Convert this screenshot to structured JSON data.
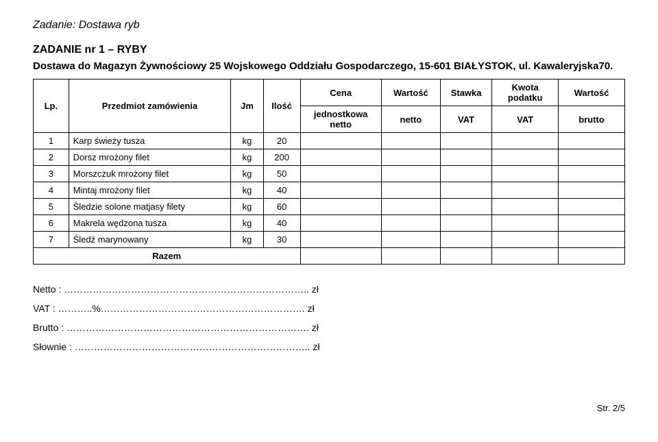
{
  "task_title": "Zadanie: Dostawa ryb",
  "section_heading": "ZADANIE nr 1 – RYBY",
  "delivery_line": "Dostawa do Magazyn Żywnościowy 25 Wojskowego Oddziału Gospodarczego, 15-601 BIAŁYSTOK, ul. Kawaleryjska70.",
  "headers": {
    "lp": "Lp.",
    "name": "Przedmiot zamówienia",
    "jm": "Jm",
    "ilosc": "Ilość",
    "cena_top": "Cena",
    "cena_bot1": "jednostkowa",
    "cena_bot2": "netto",
    "wn_top": "Wartość",
    "wn_bot": "netto",
    "stawka_top": "Stawka",
    "stawka_bot": "VAT",
    "kwota_top1": "Kwota",
    "kwota_top2": "podatku",
    "kwota_bot": "VAT",
    "wb_top": "Wartość",
    "wb_bot": "brutto"
  },
  "rows": [
    {
      "lp": "1",
      "name": "Karp świeży tusza",
      "jm": "kg",
      "ilosc": "20"
    },
    {
      "lp": "2",
      "name": "Dorsz mrożony filet",
      "jm": "kg",
      "ilosc": "200"
    },
    {
      "lp": "3",
      "name": "Morszczuk mrożony filet",
      "jm": "kg",
      "ilosc": "50"
    },
    {
      "lp": "4",
      "name": "Mintaj mrożony filet",
      "jm": "kg",
      "ilosc": "40"
    },
    {
      "lp": "5",
      "name": "Śledzie solone matjasy filety",
      "jm": "kg",
      "ilosc": "60"
    },
    {
      "lp": "6",
      "name": "Makrela wędzona tusza",
      "jm": "kg",
      "ilosc": "40"
    },
    {
      "lp": "7",
      "name": "Śledź marynowany",
      "jm": "kg",
      "ilosc": "30"
    }
  ],
  "razem_label": "Razem",
  "totals": {
    "netto": "Netto : ………………………………………………………………….. zł",
    "vat": "VAT : ………..%………………………………………………………. zł",
    "brutto": "Brutto : …………………………………………………………………. zł",
    "slownie": "Słownie : ……………………………………………………………….. zł"
  },
  "footer": "Str. 2/5"
}
